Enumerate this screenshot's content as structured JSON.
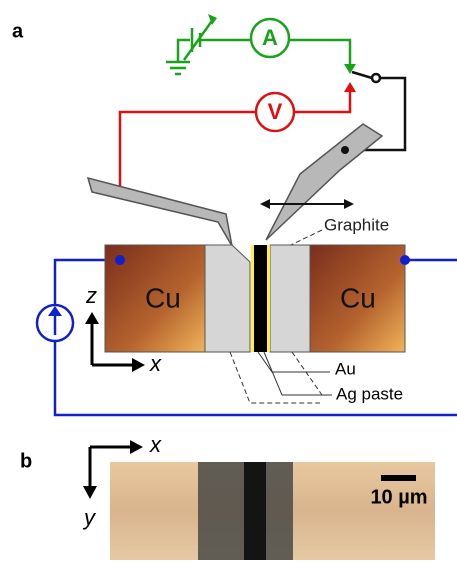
{
  "panel_a": {
    "label": "a",
    "ammeter": "A",
    "voltmeter": "V",
    "graphite": "Graphite",
    "left_block": "Cu",
    "right_block": "Cu",
    "axis_z": "z",
    "axis_x": "x",
    "au": "Au",
    "ag_paste": "Ag paste"
  },
  "panel_b": {
    "label": "b",
    "axis_x": "x",
    "axis_y": "y",
    "scale_bar": "10 µm"
  }
}
